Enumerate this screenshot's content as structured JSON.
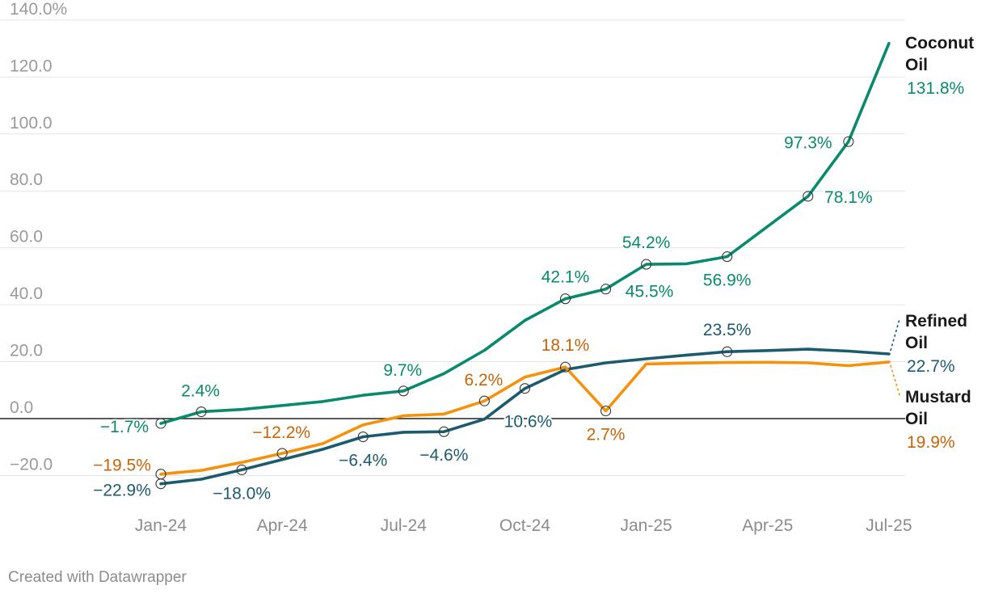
{
  "footer": {
    "credit": "Created with Datawrapper"
  },
  "chart_data": {
    "type": "line",
    "x": [
      "2024-01",
      "2024-02",
      "2024-03",
      "2024-04",
      "2024-05",
      "2024-06",
      "2024-07",
      "2024-08",
      "2024-09",
      "2024-10",
      "2024-11",
      "2024-12",
      "2025-01",
      "2025-02",
      "2025-03",
      "2025-04",
      "2025-05",
      "2025-06",
      "2025-07"
    ],
    "x_tick_labels": [
      "Jan-24",
      "Apr-24",
      "Jul-24",
      "Oct-24",
      "Jan-25",
      "Apr-25",
      "Jul-25"
    ],
    "y_tick_labels": [
      "−20.0",
      "0.0",
      "20.0",
      "40.0",
      "60.0",
      "80.0",
      "100.0",
      "120.0",
      "140.0%"
    ],
    "ylim": [
      -20,
      140
    ],
    "grid": true,
    "zero_line": true,
    "series": [
      {
        "name": "Coconut Oil",
        "end_label": [
          "Coconut",
          "Oil"
        ],
        "end_value": "131.8%",
        "color": "#0a8a6c",
        "values": [
          -1.7,
          2.4,
          3.2,
          4.6,
          6.0,
          8.2,
          9.7,
          15.8,
          24.0,
          34.5,
          42.1,
          45.5,
          54.2,
          54.4,
          56.9,
          67.5,
          78.1,
          97.3,
          131.8
        ],
        "labels": [
          {
            "i": 0,
            "text": "−1.7%"
          },
          {
            "i": 1,
            "text": "2.4%"
          },
          {
            "i": 6,
            "text": "9.7%"
          },
          {
            "i": 10,
            "text": "42.1%"
          },
          {
            "i": 11,
            "text": "45.5%"
          },
          {
            "i": 12,
            "text": "54.2%"
          },
          {
            "i": 14,
            "text": "56.9%"
          },
          {
            "i": 16,
            "text": "78.1%"
          },
          {
            "i": 17,
            "text": "97.3%"
          }
        ]
      },
      {
        "name": "Refined Oil",
        "end_label": [
          "Refined",
          "Oil"
        ],
        "end_value": "22.7%",
        "color": "#1c5a6e",
        "values": [
          -22.9,
          -21.3,
          -18.0,
          -14.4,
          -10.8,
          -6.4,
          -4.8,
          -4.6,
          -0.2,
          10.6,
          17.2,
          19.6,
          21.0,
          22.3,
          23.5,
          23.9,
          24.4,
          23.7,
          22.7
        ],
        "labels": [
          {
            "i": 0,
            "text": "−22.9%"
          },
          {
            "i": 2,
            "text": "−18.0%"
          },
          {
            "i": 5,
            "text": "−6.4%"
          },
          {
            "i": 7,
            "text": "−4.6%"
          },
          {
            "i": 9,
            "text": "10.6%"
          },
          {
            "i": 14,
            "text": "23.5%"
          }
        ]
      },
      {
        "name": "Mustard Oil",
        "end_label": [
          "Mustard",
          "Oil"
        ],
        "end_value": "19.9%",
        "color": "#f5920c",
        "label_color": "#c4650a",
        "values": [
          -19.5,
          -18.2,
          -15.4,
          -12.2,
          -8.8,
          -2.2,
          1.0,
          1.6,
          6.2,
          14.6,
          18.1,
          2.7,
          19.2,
          19.5,
          19.7,
          19.8,
          19.6,
          18.6,
          19.9
        ],
        "labels": [
          {
            "i": 0,
            "text": "−19.5%"
          },
          {
            "i": 3,
            "text": "−12.2%"
          },
          {
            "i": 8,
            "text": "6.2%"
          },
          {
            "i": 10,
            "text": "18.1%"
          },
          {
            "i": 11,
            "text": "2.7%"
          }
        ]
      }
    ]
  }
}
